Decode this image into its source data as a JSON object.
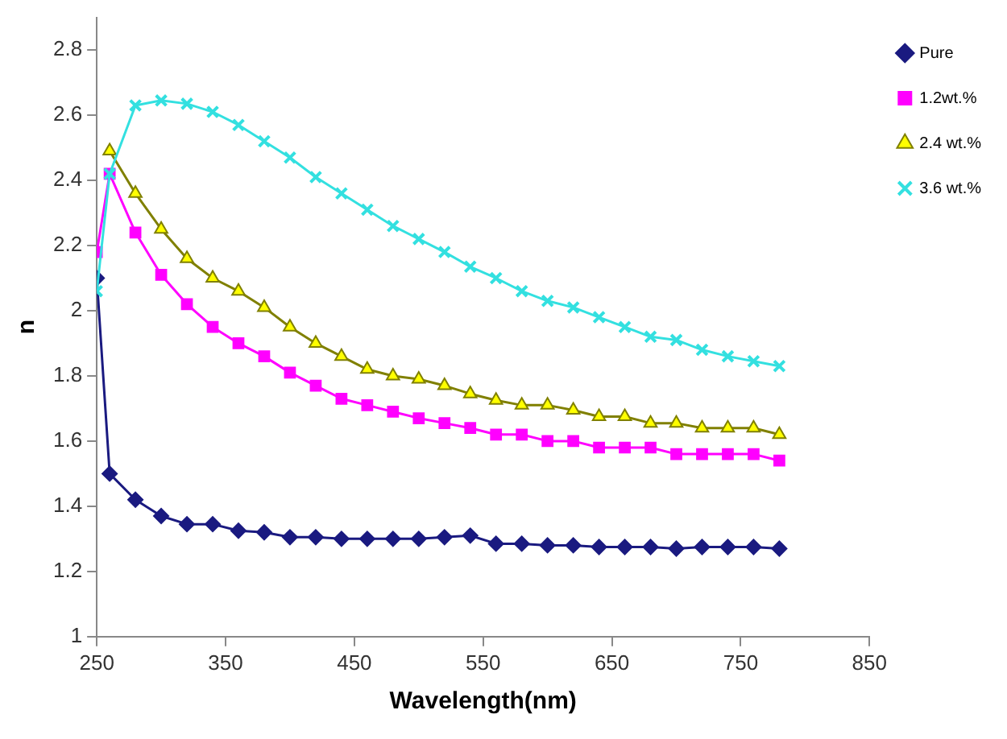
{
  "chart_data": {
    "type": "line",
    "xlabel": "Wavelength(nm)",
    "ylabel": "n",
    "x": [
      250,
      260,
      280,
      300,
      320,
      340,
      360,
      380,
      400,
      420,
      440,
      460,
      480,
      500,
      520,
      540,
      560,
      580,
      600,
      620,
      640,
      660,
      680,
      700,
      720,
      740,
      760,
      780
    ],
    "xlim": [
      250,
      850
    ],
    "xticks": [
      250,
      350,
      450,
      550,
      650,
      750,
      850
    ],
    "ylim": [
      1,
      2.9
    ],
    "yticks": [
      1,
      1.2,
      1.4,
      1.6,
      1.8,
      2,
      2.2,
      2.4,
      2.6,
      2.8
    ],
    "grid": false,
    "legend": "top right",
    "line_style": "solid",
    "series": [
      {
        "name": "Pure",
        "color": "#1a1a80",
        "marker": "diamond",
        "values": [
          2.1,
          1.5,
          1.42,
          1.37,
          1.345,
          1.345,
          1.325,
          1.32,
          1.305,
          1.305,
          1.3,
          1.3,
          1.3,
          1.3,
          1.305,
          1.31,
          1.285,
          1.285,
          1.28,
          1.28,
          1.275,
          1.275,
          1.275,
          1.27,
          1.275,
          1.275,
          1.275,
          1.27
        ]
      },
      {
        "name": "1.2wt.%",
        "color": "#ff00ff",
        "marker": "square",
        "values": [
          2.18,
          2.42,
          2.24,
          2.11,
          2.02,
          1.95,
          1.9,
          1.86,
          1.81,
          1.77,
          1.73,
          1.71,
          1.69,
          1.67,
          1.655,
          1.64,
          1.62,
          1.62,
          1.6,
          1.6,
          1.58,
          1.58,
          1.58,
          1.56,
          1.56,
          1.56,
          1.56,
          1.54
        ]
      },
      {
        "name": "2.4 wt.%",
        "color": "#808000",
        "marker": "triangle",
        "values": [
          null,
          2.49,
          2.36,
          2.25,
          2.16,
          2.1,
          2.06,
          2.01,
          1.95,
          1.9,
          1.86,
          1.82,
          1.8,
          1.79,
          1.77,
          1.745,
          1.725,
          1.71,
          1.71,
          1.695,
          1.675,
          1.675,
          1.655,
          1.655,
          1.64,
          1.64,
          1.64,
          1.62
        ]
      },
      {
        "name": "3.6 wt.%",
        "color": "#33e0e0",
        "marker": "cross",
        "values": [
          2.06,
          2.42,
          2.63,
          2.645,
          2.635,
          2.61,
          2.57,
          2.52,
          2.47,
          2.41,
          2.36,
          2.31,
          2.26,
          2.22,
          2.18,
          2.135,
          2.1,
          2.06,
          2.03,
          2.01,
          1.98,
          1.95,
          1.92,
          1.91,
          1.88,
          1.86,
          1.845,
          1.83
        ]
      }
    ]
  }
}
